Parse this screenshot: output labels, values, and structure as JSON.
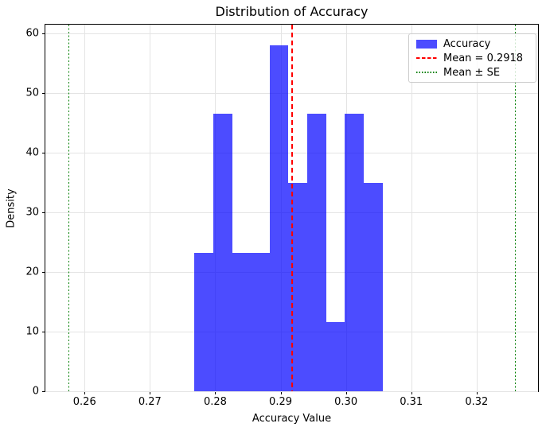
{
  "figure": {
    "title": "Distribution of Accuracy",
    "xlabel": "Accuracy Value",
    "ylabel": "Density"
  },
  "legend": {
    "position": "upper right",
    "items": [
      {
        "label": "Accuracy",
        "swatch": "patch",
        "color": "#0000ff"
      },
      {
        "label": "Mean = 0.2918",
        "swatch": "dashed",
        "color": "#ff0000"
      },
      {
        "label": "Mean ± SE",
        "swatch": "dotted",
        "color": "#008000"
      }
    ]
  },
  "chart_data": {
    "type": "bar",
    "subtype": "histogram",
    "title": "Distribution of Accuracy",
    "xlabel": "Accuracy Value",
    "ylabel": "Density",
    "bin_edges": [
      0.2768,
      0.2797,
      0.2826,
      0.2854,
      0.2883,
      0.2912,
      0.2941,
      0.297,
      0.2998,
      0.3027,
      0.3056
    ],
    "densities": [
      23.2,
      46.5,
      23.2,
      23.2,
      58.1,
      34.9,
      46.5,
      11.6,
      46.5,
      34.9
    ],
    "mean": 0.2918,
    "se_lower": 0.2576,
    "se_upper": 0.3259,
    "xlim": [
      0.254,
      0.3294
    ],
    "ylim": [
      0,
      61.5
    ],
    "xticks": [
      0.26,
      0.27,
      0.28,
      0.29,
      0.3,
      0.31,
      0.32
    ],
    "xtick_labels": [
      "0.26",
      "0.27",
      "0.28",
      "0.29",
      "0.30",
      "0.31",
      "0.32"
    ],
    "yticks": [
      0,
      10,
      20,
      30,
      40,
      50,
      60
    ],
    "ytick_labels": [
      "0",
      "10",
      "20",
      "30",
      "40",
      "50",
      "60"
    ],
    "bar_color": "#0000ff",
    "bar_alpha": 0.7,
    "mean_line_color": "#ff0000",
    "mean_line_style": "dashed",
    "se_line_color": "#008000",
    "se_line_style": "dotted",
    "grid": true,
    "legend_position": "upper right"
  }
}
